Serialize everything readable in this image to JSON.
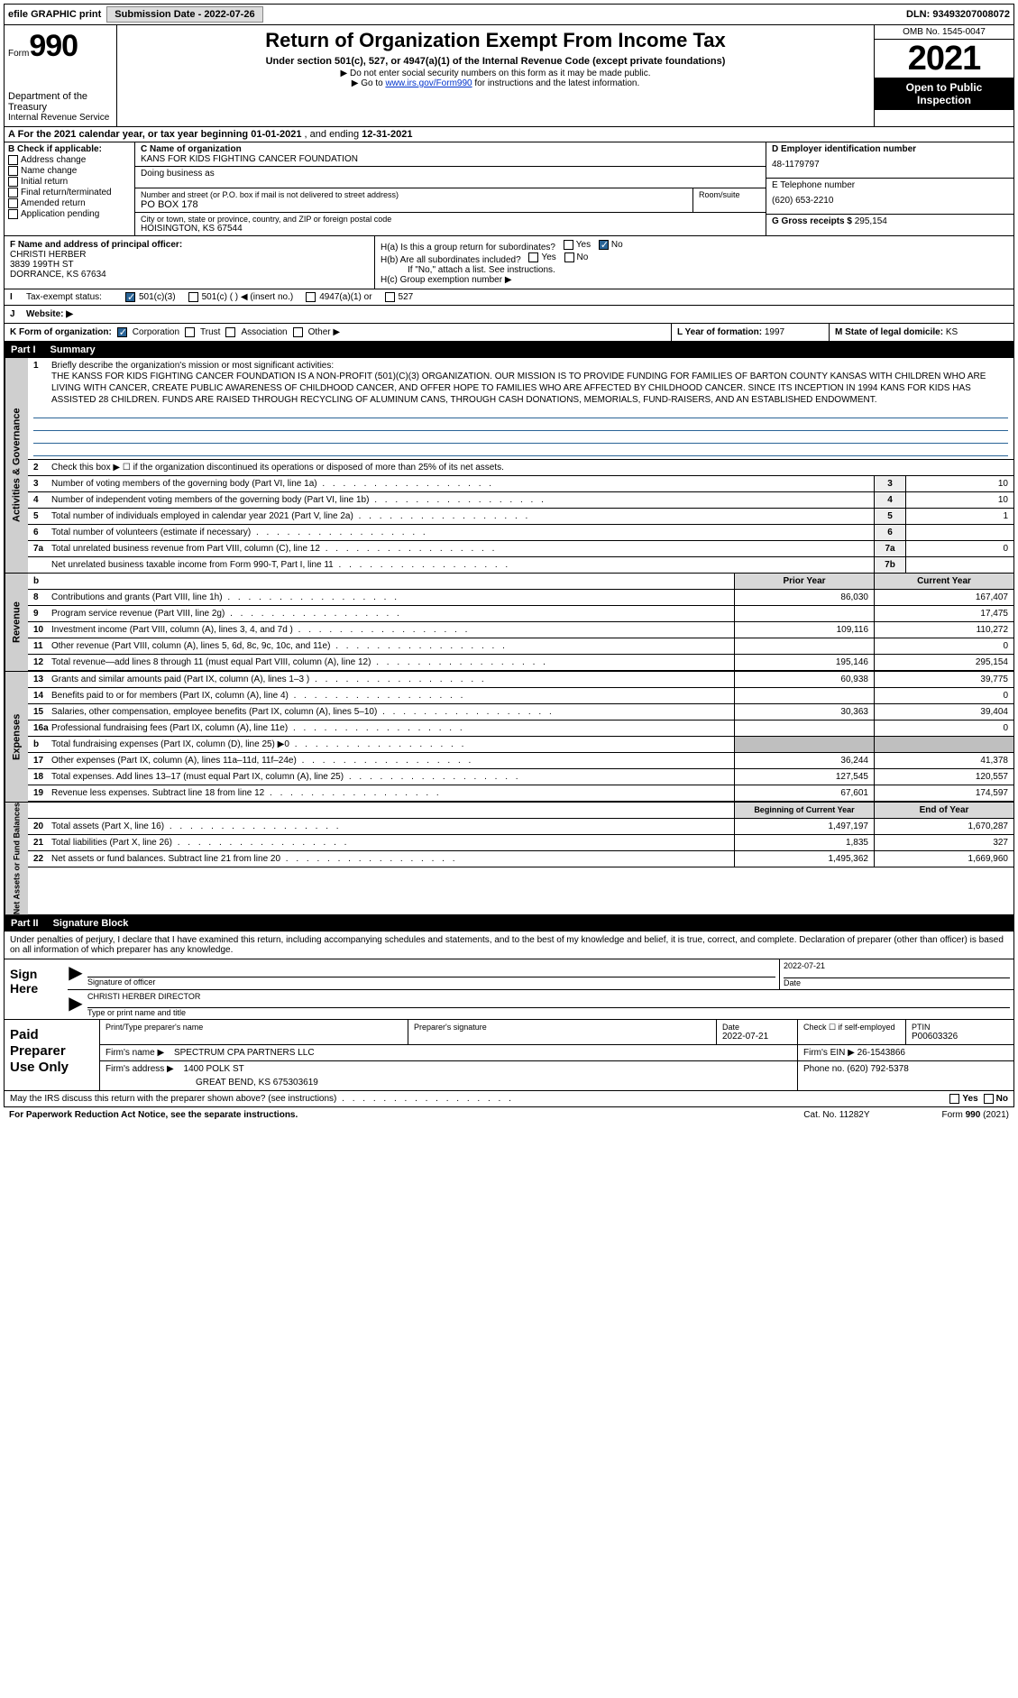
{
  "topbar": {
    "efile": "efile GRAPHIC print",
    "submit_label": "Submission Date - 2022-07-26",
    "dln": "DLN: 93493207008072"
  },
  "header": {
    "form_prefix": "Form",
    "form_num": "990",
    "title": "Return of Organization Exempt From Income Tax",
    "subtitle": "Under section 501(c), 527, or 4947(a)(1) of the Internal Revenue Code (except private foundations)",
    "note1": "▶ Do not enter social security numbers on this form as it may be made public.",
    "note2_pre": "▶ Go to ",
    "note2_link": "www.irs.gov/Form990",
    "note2_post": " for instructions and the latest information.",
    "dept": "Department of the Treasury",
    "irs": "Internal Revenue Service",
    "omb": "OMB No. 1545-0047",
    "year": "2021",
    "inspection1": "Open to Public",
    "inspection2": "Inspection"
  },
  "period": {
    "label_a": "A For the 2021 calendar year, or tax year beginning ",
    "begin": "01-01-2021",
    "mid": " , and ending ",
    "end": "12-31-2021"
  },
  "colb": {
    "header": "B Check if applicable:",
    "addr_change": "Address change",
    "name_change": "Name change",
    "initial": "Initial return",
    "final": "Final return/terminated",
    "amended": "Amended return",
    "app_pending": "Application pending"
  },
  "colc": {
    "name_label": "C Name of organization",
    "name": "KANS FOR KIDS FIGHTING CANCER FOUNDATION",
    "dba_label": "Doing business as",
    "addr_label": "Number and street (or P.O. box if mail is not delivered to street address)",
    "room_label": "Room/suite",
    "addr": "PO BOX 178",
    "city_label": "City or town, state or province, country, and ZIP or foreign postal code",
    "city": "HOISINGTON, KS  67544"
  },
  "cold": {
    "ein_label": "D Employer identification number",
    "ein": "48-1179797",
    "phone_label": "E Telephone number",
    "phone": "(620) 653-2210",
    "gross_label": "G Gross receipts $ ",
    "gross": "295,154"
  },
  "officer": {
    "label": "F  Name and address of principal officer:",
    "name": "CHRISTI HERBER",
    "street": "3839 199TH ST",
    "city": "DORRANCE, KS  67634"
  },
  "h": {
    "a_label": "H(a)  Is this a group return for subordinates?",
    "b_label": "H(b)  Are all subordinates included?",
    "b_note": "If \"No,\" attach a list. See instructions.",
    "c_label": "H(c)  Group exemption number ▶",
    "yes": "Yes",
    "no": "No"
  },
  "status": {
    "label_i": "I",
    "label": "Tax-exempt status:",
    "c3": "501(c)(3)",
    "c": "501(c) (  ) ◀ (insert no.)",
    "a1": "4947(a)(1) or",
    "527": "527"
  },
  "website": {
    "label_j": "J",
    "label": "Website: ▶"
  },
  "korg": {
    "label": "K Form of organization:",
    "corp": "Corporation",
    "trust": "Trust",
    "assoc": "Association",
    "other": "Other ▶",
    "year_label": "L Year of formation: ",
    "year": "1997",
    "state_label": "M State of legal domicile: ",
    "state": "KS"
  },
  "part1": {
    "num": "Part I",
    "title": "Summary"
  },
  "activities": {
    "tab": "Activities & Governance",
    "q1": "Briefly describe the organization's mission or most significant activities:",
    "mission": "THE KANSS FOR KIDS FIGHTING CANCER FOUNDATION IS A NON-PROFIT (501)(C)(3) ORGANIZATION. OUR MISSION IS TO PROVIDE FUNDING FOR FAMILIES OF BARTON COUNTY KANSAS WITH CHILDREN WHO ARE LIVING WITH CANCER, CREATE PUBLIC AWARENESS OF CHILDHOOD CANCER, AND OFFER HOPE TO FAMILIES WHO ARE AFFECTED BY CHILDHOOD CANCER. SINCE ITS INCEPTION IN 1994 KANS FOR KIDS HAS ASSISTED 28 CHILDREN. FUNDS ARE RAISED THROUGH RECYCLING OF ALUMINUM CANS, THROUGH CASH DONATIONS, MEMORIALS, FUND-RAISERS, AND AN ESTABLISHED ENDOWMENT.",
    "q2": "Check this box ▶ ☐ if the organization discontinued its operations or disposed of more than 25% of its net assets.",
    "rows": [
      {
        "idx": "3",
        "label": "Number of voting members of the governing body (Part VI, line 1a)",
        "box": "3",
        "val": "10"
      },
      {
        "idx": "4",
        "label": "Number of independent voting members of the governing body (Part VI, line 1b)",
        "box": "4",
        "val": "10"
      },
      {
        "idx": "5",
        "label": "Total number of individuals employed in calendar year 2021 (Part V, line 2a)",
        "box": "5",
        "val": "1"
      },
      {
        "idx": "6",
        "label": "Total number of volunteers (estimate if necessary)",
        "box": "6",
        "val": ""
      },
      {
        "idx": "7a",
        "label": "Total unrelated business revenue from Part VIII, column (C), line 12",
        "box": "7a",
        "val": "0"
      },
      {
        "idx": "",
        "label": "Net unrelated business taxable income from Form 990-T, Part I, line 11",
        "box": "7b",
        "val": ""
      }
    ]
  },
  "revenue": {
    "tab": "Revenue",
    "prior_h": "Prior Year",
    "curr_h": "Current Year",
    "rows": [
      {
        "idx": "8",
        "label": "Contributions and grants (Part VIII, line 1h)",
        "prior": "86,030",
        "curr": "167,407"
      },
      {
        "idx": "9",
        "label": "Program service revenue (Part VIII, line 2g)",
        "prior": "",
        "curr": "17,475"
      },
      {
        "idx": "10",
        "label": "Investment income (Part VIII, column (A), lines 3, 4, and 7d )",
        "prior": "109,116",
        "curr": "110,272"
      },
      {
        "idx": "11",
        "label": "Other revenue (Part VIII, column (A), lines 5, 6d, 8c, 9c, 10c, and 11e)",
        "prior": "",
        "curr": "0"
      },
      {
        "idx": "12",
        "label": "Total revenue—add lines 8 through 11 (must equal Part VIII, column (A), line 12)",
        "prior": "195,146",
        "curr": "295,154"
      }
    ]
  },
  "expenses": {
    "tab": "Expenses",
    "rows": [
      {
        "idx": "13",
        "label": "Grants and similar amounts paid (Part IX, column (A), lines 1–3 )",
        "prior": "60,938",
        "curr": "39,775"
      },
      {
        "idx": "14",
        "label": "Benefits paid to or for members (Part IX, column (A), line 4)",
        "prior": "",
        "curr": "0"
      },
      {
        "idx": "15",
        "label": "Salaries, other compensation, employee benefits (Part IX, column (A), lines 5–10)",
        "prior": "30,363",
        "curr": "39,404"
      },
      {
        "idx": "16a",
        "label": "Professional fundraising fees (Part IX, column (A), line 11e)",
        "prior": "",
        "curr": "0"
      },
      {
        "idx": "b",
        "label": "Total fundraising expenses (Part IX, column (D), line 25) ▶0",
        "prior": "GRAY",
        "curr": "GRAY"
      },
      {
        "idx": "17",
        "label": "Other expenses (Part IX, column (A), lines 11a–11d, 11f–24e)",
        "prior": "36,244",
        "curr": "41,378"
      },
      {
        "idx": "18",
        "label": "Total expenses. Add lines 13–17 (must equal Part IX, column (A), line 25)",
        "prior": "127,545",
        "curr": "120,557"
      },
      {
        "idx": "19",
        "label": "Revenue less expenses. Subtract line 18 from line 12",
        "prior": "67,601",
        "curr": "174,597"
      }
    ]
  },
  "netassets": {
    "tab": "Net Assets or Fund Balances",
    "begin_h": "Beginning of Current Year",
    "end_h": "End of Year",
    "rows": [
      {
        "idx": "20",
        "label": "Total assets (Part X, line 16)",
        "prior": "1,497,197",
        "curr": "1,670,287"
      },
      {
        "idx": "21",
        "label": "Total liabilities (Part X, line 26)",
        "prior": "1,835",
        "curr": "327"
      },
      {
        "idx": "22",
        "label": "Net assets or fund balances. Subtract line 21 from line 20",
        "prior": "1,495,362",
        "curr": "1,669,960"
      }
    ]
  },
  "part2": {
    "num": "Part II",
    "title": "Signature Block"
  },
  "sig": {
    "declaration": "Under penalties of perjury, I declare that I have examined this return, including accompanying schedules and statements, and to the best of my knowledge and belief, it is true, correct, and complete. Declaration of preparer (other than officer) is based on all information of which preparer has any knowledge.",
    "sign_here": "Sign Here",
    "sig_officer": "Signature of officer",
    "date_label": "Date",
    "date": "2022-07-21",
    "name_title": "CHRISTI HERBER  DIRECTOR",
    "name_title_label": "Type or print name and title"
  },
  "paid": {
    "label": "Paid Preparer Use Only",
    "prep_name_label": "Print/Type preparer's name",
    "prep_sig_label": "Preparer's signature",
    "date_label": "Date",
    "date": "2022-07-21",
    "self_emp": "Check ☐ if self-employed",
    "ptin_label": "PTIN",
    "ptin": "P00603326",
    "firm_name_label": "Firm's name    ▶",
    "firm_name": "SPECTRUM CPA PARTNERS LLC",
    "firm_ein_label": "Firm's EIN ▶ ",
    "firm_ein": "26-1543866",
    "firm_addr_label": "Firm's address ▶",
    "firm_addr1": "1400 POLK ST",
    "firm_addr2": "GREAT BEND, KS  675303619",
    "phone_label": "Phone no. ",
    "phone": "(620) 792-5378"
  },
  "footer": {
    "discuss": "May the IRS discuss this return with the preparer shown above? (see instructions)",
    "yes": "Yes",
    "no": "No",
    "pra": "For Paperwork Reduction Act Notice, see the separate instructions.",
    "cat": "Cat. No. 11282Y",
    "form": "Form 990 (2021)"
  }
}
